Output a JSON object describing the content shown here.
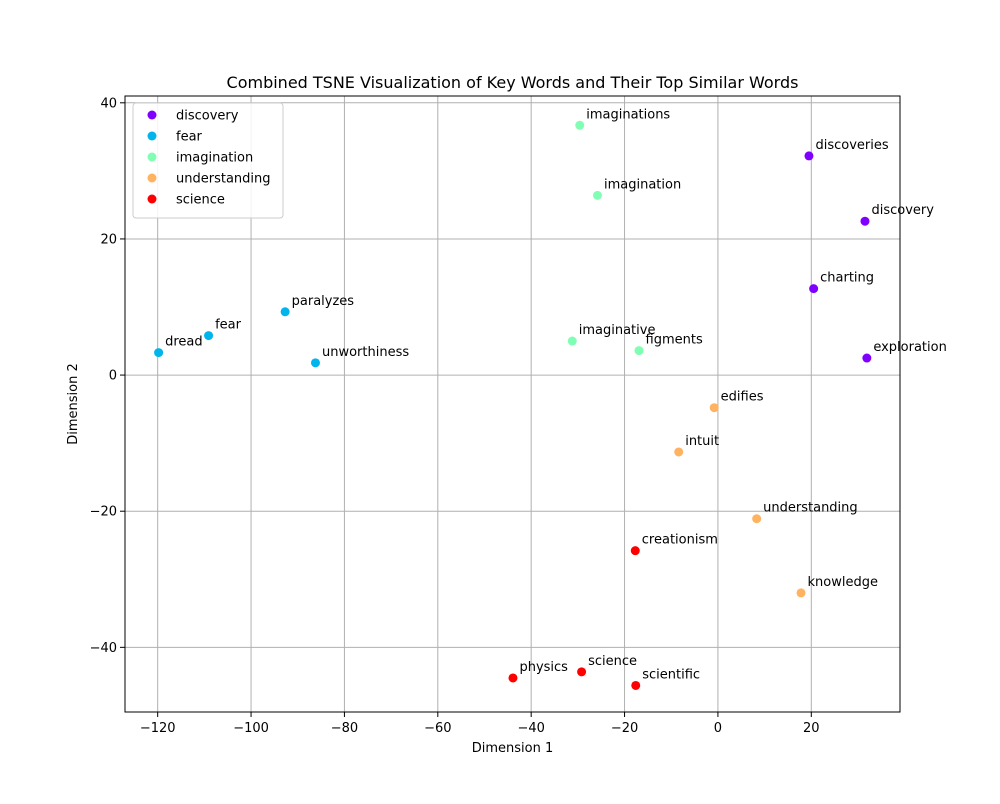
{
  "chart_data": {
    "type": "scatter",
    "title": "Combined TSNE Visualization of Key Words and Their Top Similar Words",
    "xlabel": "Dimension 1",
    "ylabel": "Dimension 2",
    "xlim": [
      -127,
      39
    ],
    "ylim": [
      -49.5,
      41
    ],
    "xticks": [
      -120,
      -100,
      -80,
      -60,
      -40,
      -20,
      0,
      20
    ],
    "yticks": [
      -40,
      -20,
      0,
      20,
      40
    ],
    "xtick_labels": [
      "−120",
      "−100",
      "−80",
      "−60",
      "−40",
      "−20",
      "0",
      "20"
    ],
    "ytick_labels": [
      "−40",
      "−20",
      "0",
      "20",
      "40"
    ],
    "grid": true,
    "legend_position": "upper-left",
    "series": [
      {
        "name": "discovery",
        "color": "#8000ff",
        "points": [
          {
            "x": 19.5,
            "y": 32.2,
            "label": "discoveries"
          },
          {
            "x": 31.5,
            "y": 22.6,
            "label": "discovery"
          },
          {
            "x": 20.5,
            "y": 12.7,
            "label": "charting"
          },
          {
            "x": 31.9,
            "y": 2.5,
            "label": "exploration"
          }
        ]
      },
      {
        "name": "fear",
        "color": "#00b5eb",
        "points": [
          {
            "x": -92.7,
            "y": 9.3,
            "label": "paralyzes"
          },
          {
            "x": -109.1,
            "y": 5.8,
            "label": "fear"
          },
          {
            "x": -119.8,
            "y": 3.3,
            "label": "dread"
          },
          {
            "x": -86.2,
            "y": 1.8,
            "label": "unworthiness"
          }
        ]
      },
      {
        "name": "imagination",
        "color": "#80ffb4",
        "points": [
          {
            "x": -29.6,
            "y": 36.7,
            "label": "imaginations"
          },
          {
            "x": -25.8,
            "y": 26.4,
            "label": "imagination"
          },
          {
            "x": -31.2,
            "y": 5.0,
            "label": "imaginative"
          },
          {
            "x": -16.9,
            "y": 3.6,
            "label": "figments"
          }
        ]
      },
      {
        "name": "understanding",
        "color": "#ffb360",
        "points": [
          {
            "x": -0.8,
            "y": -4.8,
            "label": "edifies"
          },
          {
            "x": -8.4,
            "y": -11.3,
            "label": "intuit"
          },
          {
            "x": 8.3,
            "y": -21.1,
            "label": "understanding"
          },
          {
            "x": 17.8,
            "y": -32.0,
            "label": "knowledge"
          }
        ]
      },
      {
        "name": "science",
        "color": "#ff0000",
        "points": [
          {
            "x": -17.7,
            "y": -25.8,
            "label": "creationism"
          },
          {
            "x": -43.9,
            "y": -44.5,
            "label": "physics"
          },
          {
            "x": -29.2,
            "y": -43.6,
            "label": "science"
          },
          {
            "x": -17.6,
            "y": -45.6,
            "label": "scientific"
          }
        ]
      }
    ]
  }
}
